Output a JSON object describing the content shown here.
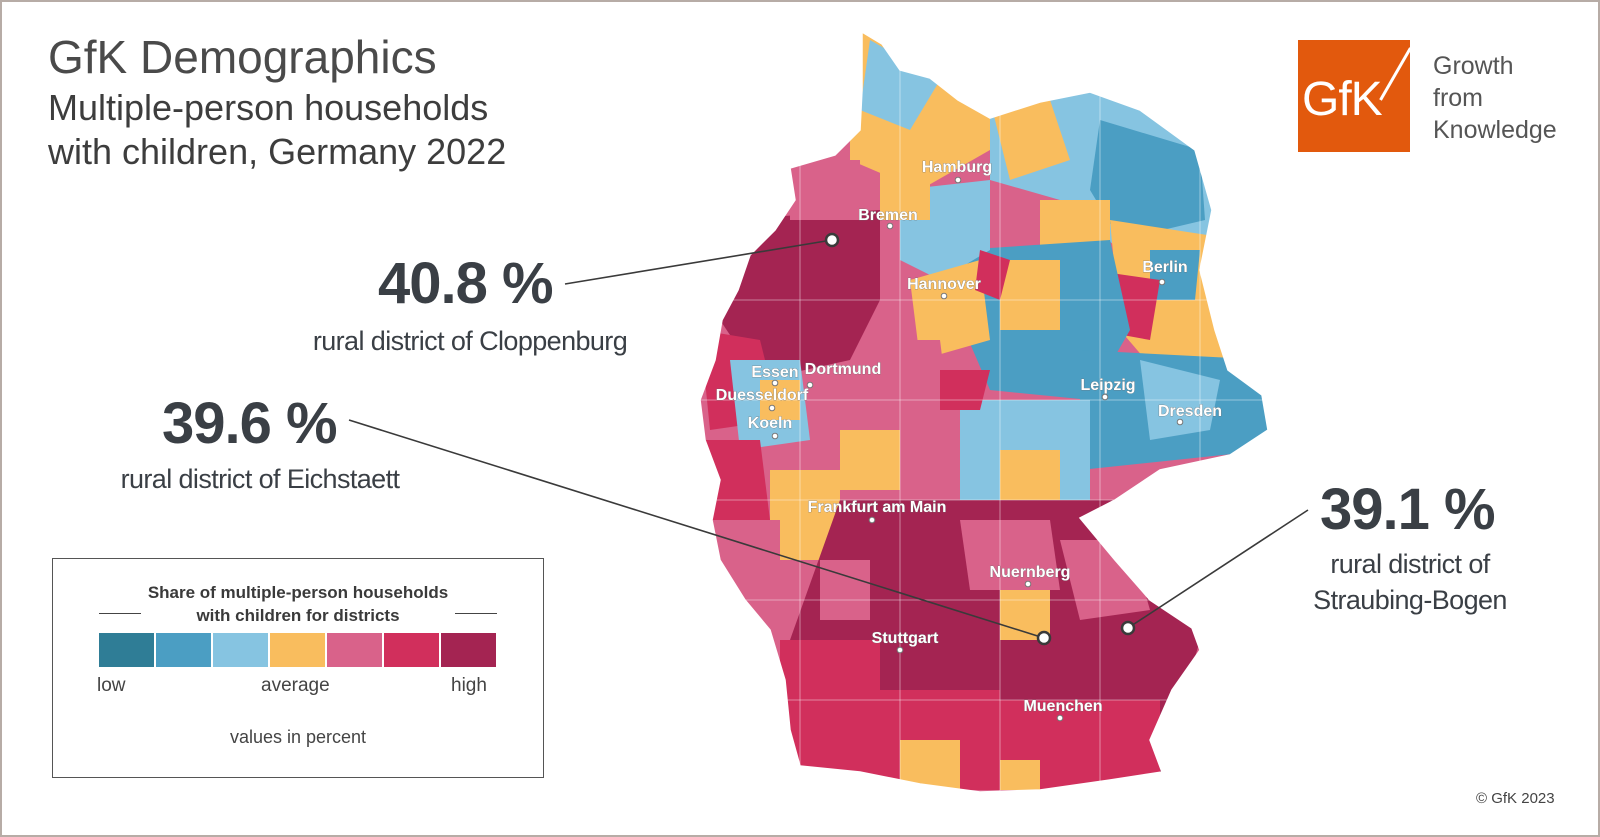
{
  "header": {
    "title": "GfK Demographics",
    "subtitle_line1": "Multiple-person households",
    "subtitle_line2": "with children, Germany 2022"
  },
  "logo": {
    "text": "GfK",
    "tagline": [
      "Growth",
      "from",
      "Knowledge"
    ],
    "color": "#e2590d"
  },
  "callouts": [
    {
      "value": "40.8 %",
      "label": "rural district of Cloppenburg"
    },
    {
      "value": "39.6 %",
      "label": "rural district of Eichstaett"
    },
    {
      "value": "39.1 %",
      "label_line1": "rural district of",
      "label_line2": "Straubing-Bogen"
    }
  ],
  "cities": [
    "Hamburg",
    "Bremen",
    "Berlin",
    "Hannover",
    "Essen",
    "Dortmund",
    "Duesseldorf",
    "Koeln",
    "Leipzig",
    "Dresden",
    "Frankfurt am Main",
    "Nuernberg",
    "Stuttgart",
    "Muenchen"
  ],
  "legend": {
    "title_line1": "Share of multiple-person households",
    "title_line2": "with children for districts",
    "low": "low",
    "average": "average",
    "high": "high",
    "unit": "values in percent",
    "colors": [
      "#2f7d96",
      "#4b9ec3",
      "#86c4e1",
      "#f9bd5e",
      "#d9628a",
      "#d12f5c",
      "#a42452"
    ]
  },
  "footer": {
    "copyright": "© GfK 2023"
  }
}
